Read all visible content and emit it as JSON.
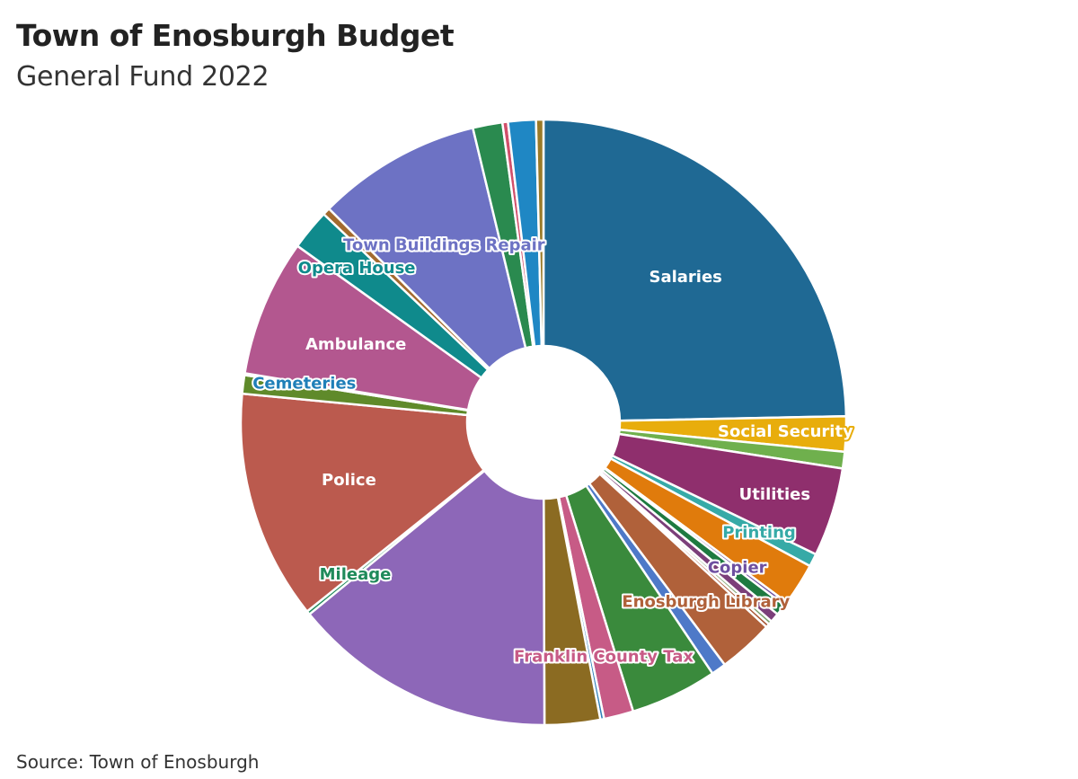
{
  "header": {
    "title": "Town of Enosburgh Budget",
    "subtitle": "General Fund 2022"
  },
  "footer": {
    "source": "Source: Town of Enosburgh"
  },
  "chart_data": {
    "type": "pie",
    "variant": "donut",
    "title": "Town of Enosburgh Budget",
    "subtitle": "General Fund 2022",
    "legend": "none",
    "slices": [
      {
        "label": "Salaries",
        "value": 25.0,
        "color": "#1f6994",
        "show_label": true,
        "label_color": "#ffffff"
      },
      {
        "label": "Social Security",
        "value": 1.9,
        "color": "#e8ad0c",
        "show_label": true,
        "label_color": "#ffffff"
      },
      {
        "label": "",
        "value": 0.9,
        "color": "#6fb04d",
        "show_label": false
      },
      {
        "label": "Utilities",
        "value": 4.8,
        "color": "#8f2f6d",
        "show_label": true,
        "label_color": "#ffffff"
      },
      {
        "label": "Printing",
        "value": 0.7,
        "color": "#36aaa7",
        "show_label": true,
        "label_color": "#36aaa7"
      },
      {
        "label": "",
        "value": 2.3,
        "color": "#e07b0c",
        "show_label": false
      },
      {
        "label": "Copier",
        "value": 0.2,
        "color": "#6e4fa0",
        "show_label": true,
        "label_color": "#6e4fa0"
      },
      {
        "label": "",
        "value": 0.6,
        "color": "#1e7a40",
        "show_label": false
      },
      {
        "label": "",
        "value": 0.5,
        "color": "#7b3f79",
        "show_label": false
      },
      {
        "label": "",
        "value": 0.2,
        "color": "#7aa06b",
        "show_label": false
      },
      {
        "label": "",
        "value": 0.2,
        "color": "#a6522f",
        "show_label": false
      },
      {
        "label": "Enosburgh Library",
        "value": 3.0,
        "color": "#b0613a",
        "show_label": true,
        "label_color": "#b0613a"
      },
      {
        "label": "",
        "value": 0.8,
        "color": "#4e79c8",
        "show_label": false
      },
      {
        "label": "",
        "value": 4.7,
        "color": "#3a8a3c",
        "show_label": false
      },
      {
        "label": "Franklin County Tax",
        "value": 1.6,
        "color": "#c75b86",
        "show_label": true,
        "label_color": "#c75b86"
      },
      {
        "label": "",
        "value": 0.2,
        "color": "#2f7fb8",
        "show_label": false
      },
      {
        "label": "",
        "value": 3.0,
        "color": "#8b6b22",
        "show_label": false
      },
      {
        "label": "",
        "value": 14.3,
        "color": "#8d67b8",
        "show_label": false
      },
      {
        "label": "Mileage",
        "value": 0.2,
        "color": "#1f8a5a",
        "show_label": true,
        "label_color": "#1f8a5a"
      },
      {
        "label": "Police",
        "value": 12.4,
        "color": "#bb5a4e",
        "show_label": true,
        "label_color": "#ffffff"
      },
      {
        "label": "",
        "value": 1.0,
        "color": "#5f8a2a",
        "show_label": false
      },
      {
        "label": "Cemeteries",
        "value": 0.1,
        "color": "#1f7fb8",
        "show_label": true,
        "label_color": "#1f7fb8"
      },
      {
        "label": "Ambulance",
        "value": 7.4,
        "color": "#b3578f",
        "show_label": true,
        "label_color": "#ffffff"
      },
      {
        "label": "Opera House",
        "value": 2.2,
        "color": "#0f8a8c",
        "show_label": true,
        "label_color": "#0f8a8c"
      },
      {
        "label": "",
        "value": 0.4,
        "color": "#a36a2e",
        "show_label": false
      },
      {
        "label": "Town Buildings Repair",
        "value": 8.9,
        "color": "#6d72c4",
        "show_label": true,
        "label_color": "#6d72c4"
      },
      {
        "label": "",
        "value": 1.6,
        "color": "#2a8a4f",
        "show_label": false
      },
      {
        "label": "",
        "value": 0.3,
        "color": "#d14f6a",
        "show_label": false
      },
      {
        "label": "",
        "value": 1.5,
        "color": "#1f87c4",
        "show_label": false
      },
      {
        "label": "",
        "value": 0.4,
        "color": "#9a7a28",
        "show_label": false
      }
    ]
  }
}
